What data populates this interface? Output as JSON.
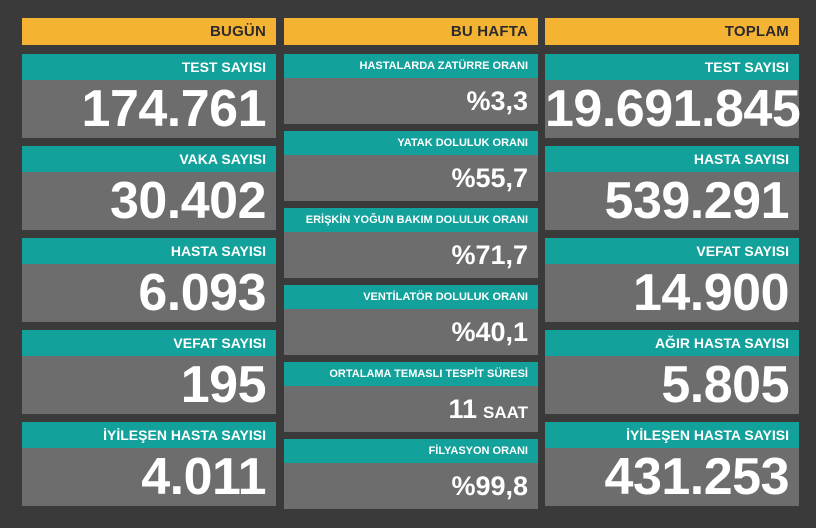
{
  "columns": {
    "today": {
      "header": "BUGÜN",
      "cards": [
        {
          "label": "TEST SAYISI",
          "value": "174.761"
        },
        {
          "label": "VAKA SAYISI",
          "value": "30.402"
        },
        {
          "label": "HASTA SAYISI",
          "value": "6.093"
        },
        {
          "label": "VEFAT SAYISI",
          "value": "195"
        },
        {
          "label": "İYİLEŞEN HASTA SAYISI",
          "value": "4.011"
        }
      ]
    },
    "week": {
      "header": "BU HAFTA",
      "cards": [
        {
          "label": "HASTALARDA ZATÜRRE ORANI",
          "value": "%3,3"
        },
        {
          "label": "YATAK DOLULUK ORANI",
          "value": "%55,7"
        },
        {
          "label": "ERİŞKİN YOĞUN BAKIM DOLULUK ORANI",
          "value": "%71,7"
        },
        {
          "label": "VENTİLATÖR DOLULUK ORANI",
          "value": "%40,1"
        },
        {
          "label": "ORTALAMA TEMASLI TESPİT SÜRESİ",
          "value": "11",
          "unit": "SAAT"
        },
        {
          "label": "FİLYASYON ORANI",
          "value": "%99,8"
        }
      ]
    },
    "total": {
      "header": "TOPLAM",
      "cards": [
        {
          "label": "TEST SAYISI",
          "value": "19.691.845"
        },
        {
          "label": "HASTA SAYISI",
          "value": "539.291"
        },
        {
          "label": "VEFAT SAYISI",
          "value": "14.900"
        },
        {
          "label": "AĞIR HASTA SAYISI",
          "value": "5.805"
        },
        {
          "label": "İYİLEŞEN HASTA SAYISI",
          "value": "431.253"
        }
      ]
    }
  },
  "colors": {
    "background": "#3a3a3a",
    "header": "#f5b334",
    "label": "#13a19b",
    "card": "#6d6d6d",
    "text": "#ffffff"
  }
}
